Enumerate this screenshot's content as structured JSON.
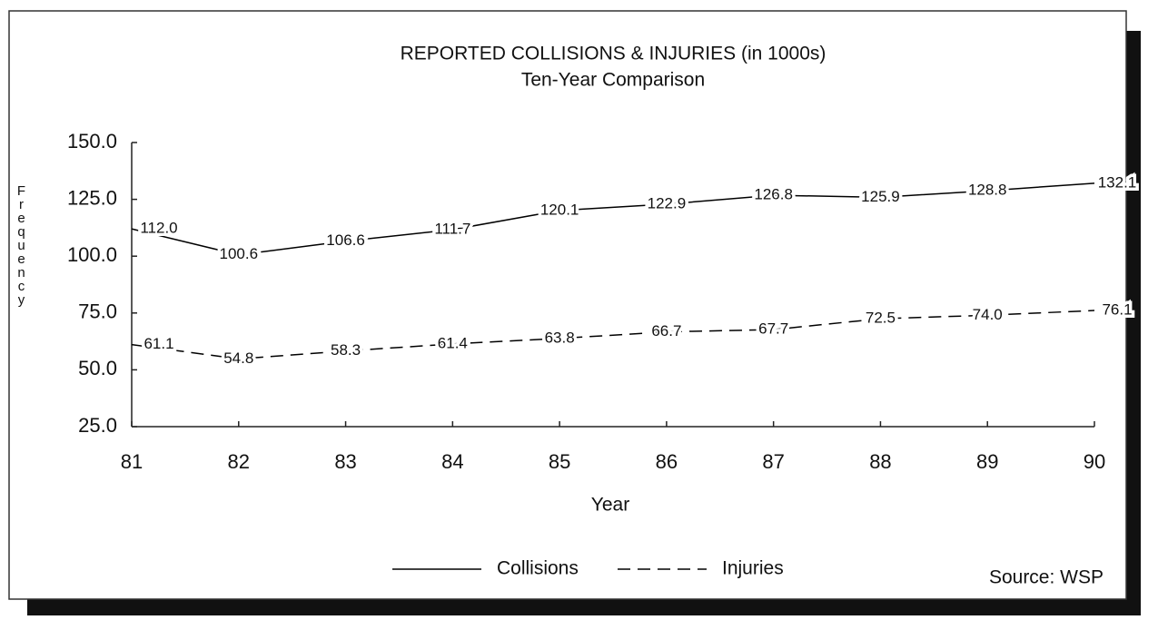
{
  "chart_data": {
    "type": "line",
    "title": "REPORTED COLLISIONS & INJURIES (in 1000s)",
    "subtitle": "Ten-Year Comparison",
    "x_label": "Year",
    "y_label": "Frequency",
    "source": "Source: WSP",
    "categories": [
      "81",
      "82",
      "83",
      "84",
      "85",
      "86",
      "87",
      "88",
      "89",
      "90"
    ],
    "series": [
      {
        "name": "Collisions",
        "color": "#000000",
        "line_style": "solid",
        "values": [
          112,
          100.6,
          106.6,
          111.7,
          120.1,
          122.9,
          126.8,
          125.9,
          128.8,
          132.1
        ],
        "value_labels": [
          "112.0",
          "100.6",
          "106.6",
          "111.7",
          "120.1",
          "122.9",
          "126.8",
          "125.9",
          "128.8",
          "132.1"
        ]
      },
      {
        "name": "Injuries",
        "color": "#000000",
        "line_style": "dashed",
        "values": [
          61.1,
          54.8,
          58.3,
          61.4,
          63.8,
          66.7,
          67.7,
          72.5,
          74,
          76.1
        ],
        "value_labels": [
          "61.1",
          "54.8",
          "58.3",
          "61.4",
          "63.8",
          "66.7",
          "67.7",
          "72.5",
          "74.0",
          "76.1"
        ]
      }
    ],
    "ylim": [
      25,
      150
    ],
    "yticks": [
      {
        "value": 25,
        "label": "25.0"
      },
      {
        "value": 50,
        "label": "50.0"
      },
      {
        "value": 75,
        "label": "75.0"
      },
      {
        "value": 100,
        "label": "100.0"
      },
      {
        "value": 125,
        "label": "125.0"
      },
      {
        "value": 150,
        "label": "150.0"
      }
    ],
    "grid": false,
    "legend": "bottom"
  }
}
